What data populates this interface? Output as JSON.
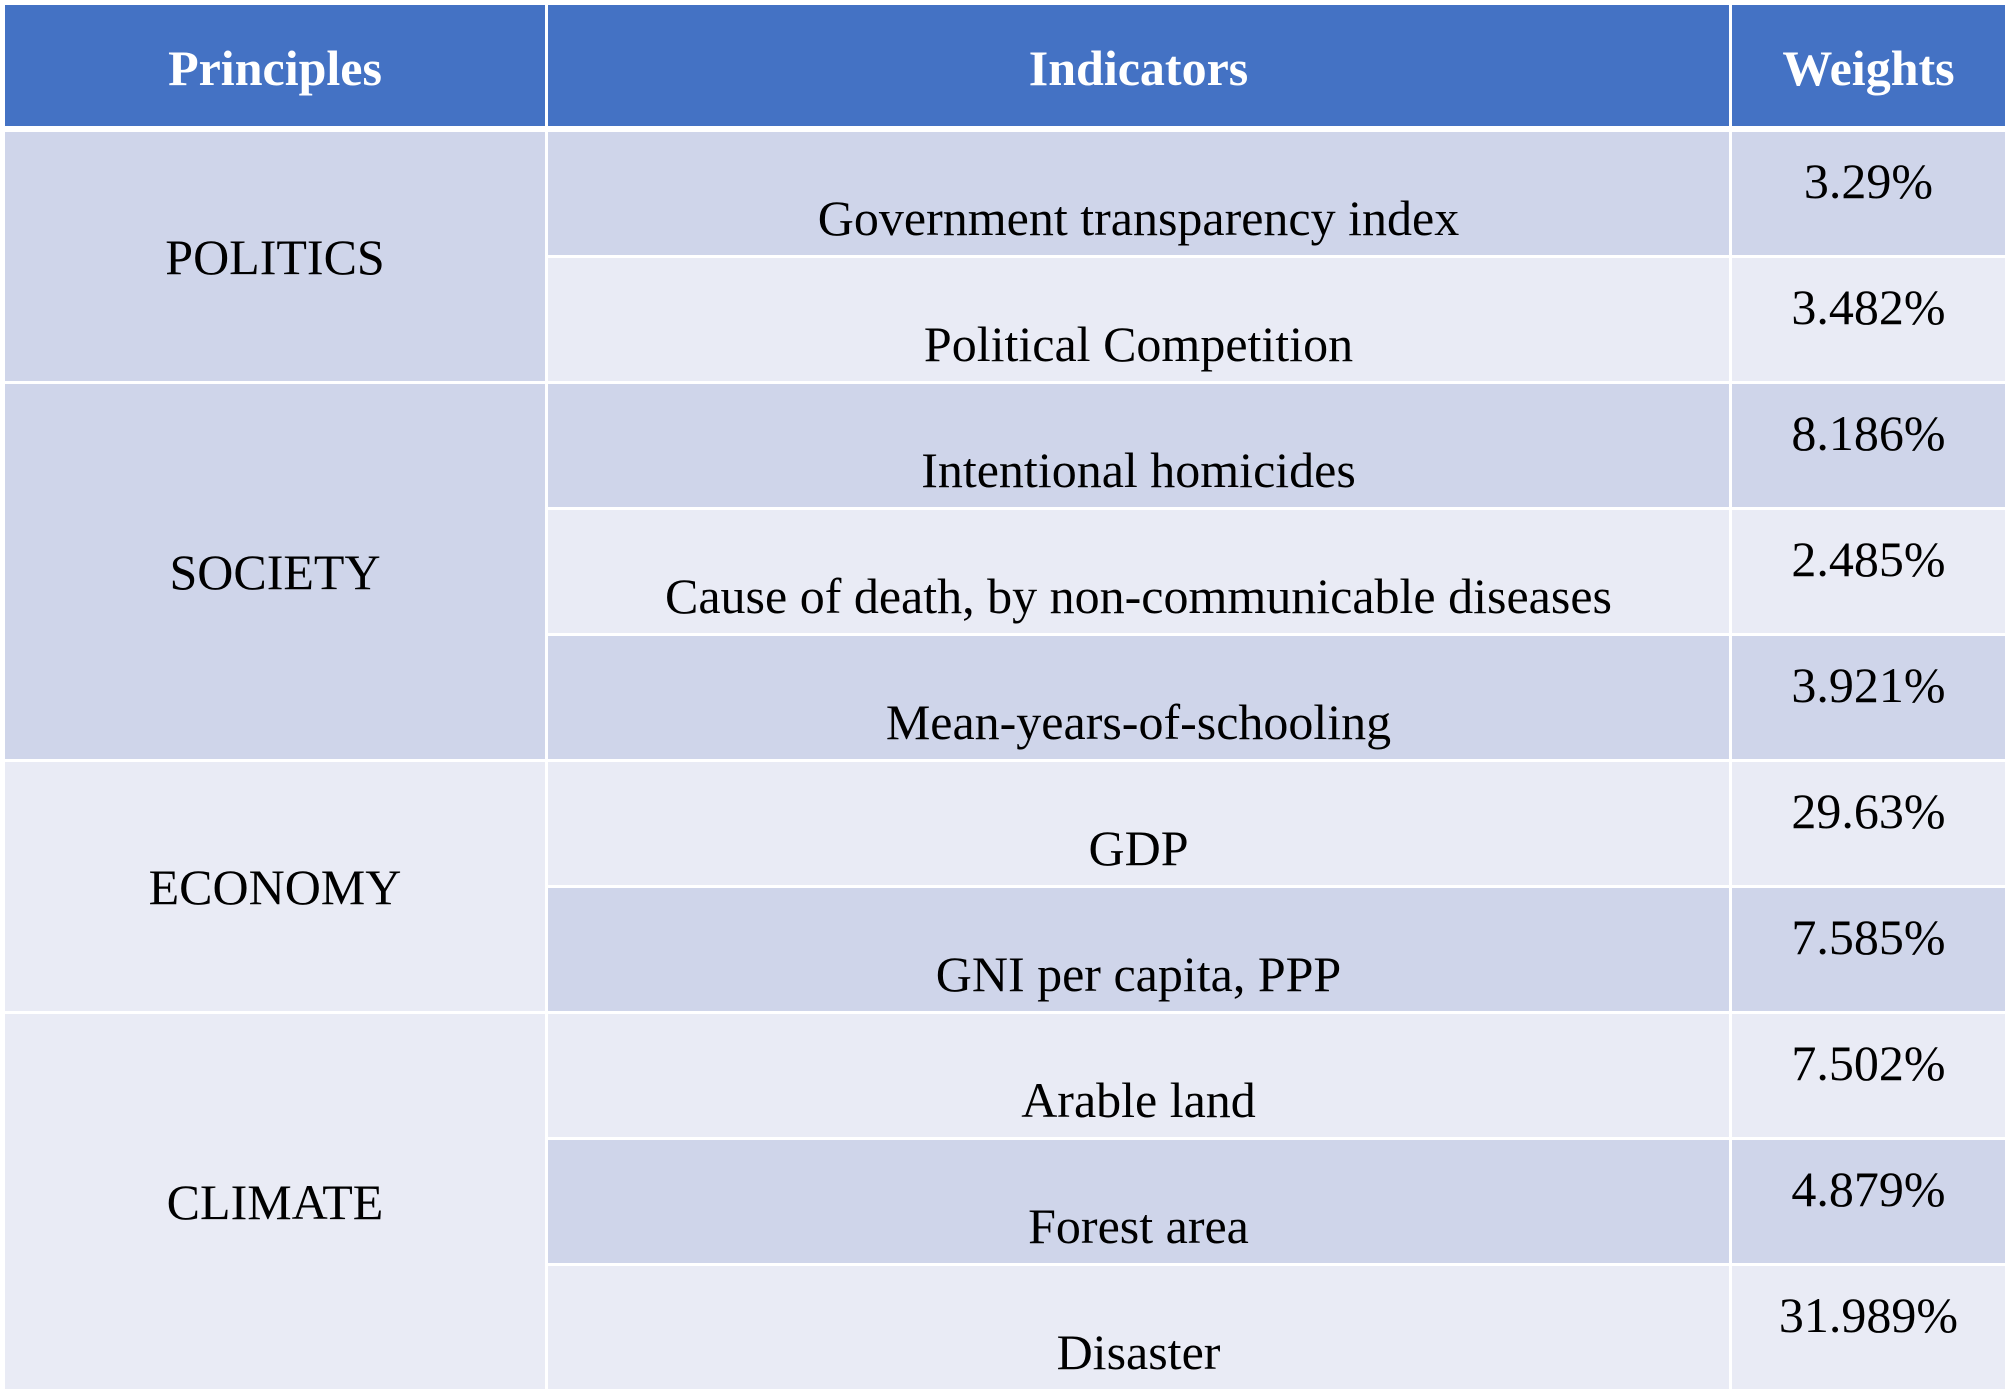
{
  "header": {
    "principles": "Principles",
    "indicators": "Indicators",
    "weights": "Weights"
  },
  "groups": [
    {
      "principle": "POLITICS",
      "rows": [
        {
          "indicator": "Government transparency index",
          "weight": "3.29%"
        },
        {
          "indicator": "Political Competition",
          "weight": "3.482%"
        }
      ]
    },
    {
      "principle": "SOCIETY",
      "rows": [
        {
          "indicator": "Intentional homicides",
          "weight": "8.186%"
        },
        {
          "indicator": "Cause of death, by non-communicable diseases",
          "weight": "2.485%"
        },
        {
          "indicator": "Mean-years-of-schooling",
          "weight": "3.921%"
        }
      ]
    },
    {
      "principle": "ECONOMY",
      "rows": [
        {
          "indicator": "GDP",
          "weight": "29.63%"
        },
        {
          "indicator": "GNI per capita, PPP",
          "weight": "7.585%"
        }
      ]
    },
    {
      "principle": "CLIMATE",
      "rows": [
        {
          "indicator": "Arable land",
          "weight": "7.502%"
        },
        {
          "indicator": "Forest area",
          "weight": "4.879%"
        },
        {
          "indicator": "Disaster",
          "weight": "31.989%"
        }
      ]
    }
  ],
  "colors": {
    "header_bg": "#4472c4",
    "band_dark": "#cfd5ea",
    "band_light": "#e9ebf5",
    "header_text": "#ffffff",
    "body_text": "#000000"
  }
}
